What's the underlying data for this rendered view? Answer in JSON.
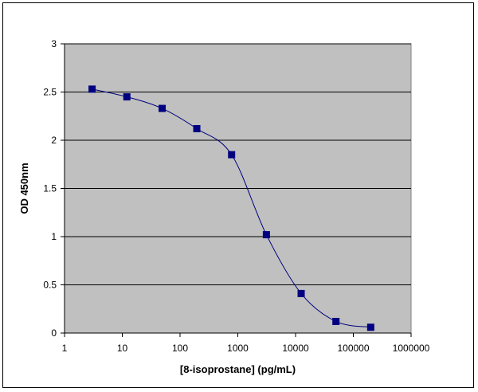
{
  "chart_data": {
    "type": "scatter",
    "title": "",
    "xlabel": "[8-isoprostane] (pg/mL)",
    "ylabel": "OD 450nm",
    "x_scale": "log",
    "xlim": [
      1,
      1000000
    ],
    "ylim": [
      0,
      3
    ],
    "x_tick_labels": [
      "1",
      "10",
      "100",
      "1000",
      "10000",
      "100000",
      "1000000"
    ],
    "y_tick_labels": [
      "0",
      "0.5",
      "1",
      "1.5",
      "2",
      "2.5",
      "3"
    ],
    "grid": "horizontal",
    "legend": "none",
    "series": [
      {
        "x": [
          3,
          12,
          49,
          195,
          781,
          3125,
          12500,
          50000,
          200000
        ],
        "y": [
          2.53,
          2.45,
          2.33,
          2.12,
          1.85,
          1.02,
          0.41,
          0.12,
          0.06
        ],
        "marker": "square",
        "line": "smooth"
      }
    ],
    "colors": {
      "plot_background": "#c0c0c0",
      "series": "#000080",
      "grid": "#000000"
    }
  }
}
